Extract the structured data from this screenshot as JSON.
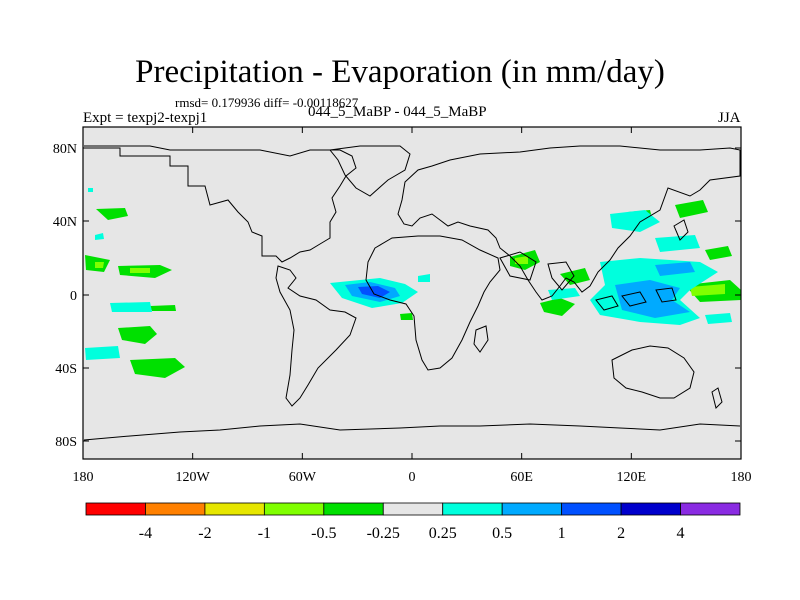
{
  "header": {
    "title": "Precipitation - Evaporation (in mm/day)",
    "stats": "rmsd= 0.179936 diff= -0.00118627",
    "expt": "Expt = texpj2-texpj1",
    "runs": "044_5_MaBP - 044_5_MaBP",
    "season": "JJA"
  },
  "axes": {
    "x_ticks": [
      "180",
      "120W",
      "60W",
      "0",
      "60E",
      "120E",
      "180"
    ],
    "y_ticks": [
      "80N",
      "40N",
      "0",
      "40S",
      "80S"
    ]
  },
  "colorbar": {
    "colors": [
      "#ff0000",
      "#ff8000",
      "#e6e600",
      "#80ff00",
      "#00e000",
      "#e6e6e6",
      "#00ffdd",
      "#00aaff",
      "#0050ff",
      "#0000cc",
      "#8a2be2"
    ],
    "labels": [
      "-4",
      "-2",
      "-1",
      "-0.5",
      "-0.25",
      "0.25",
      "0.5",
      "1",
      "2",
      "4"
    ]
  },
  "colors": {
    "map_background": "#e6e6e6",
    "coastline": "#000000",
    "positive_light": "#00ffdd",
    "positive_mid": "#00aaff",
    "positive_strong": "#0050ff",
    "positive_max": "#0000cc",
    "negative_light": "#00e000",
    "negative_mid": "#80ff00"
  }
}
